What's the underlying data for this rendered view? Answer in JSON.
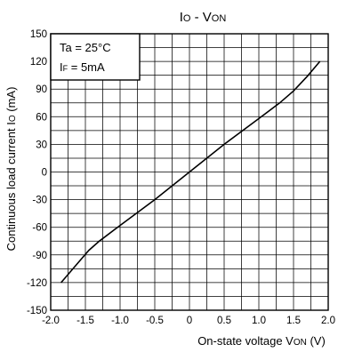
{
  "chart_data": {
    "type": "line",
    "title": {
      "main": "I",
      "main_sub": "O",
      "sep": " - ",
      "v": "V",
      "v_sub": "ON"
    },
    "xlabel": {
      "prefix": "On-state voltage V",
      "sub": "ON",
      "suffix": " (V)"
    },
    "ylabel": {
      "prefix": "Continuous load current I",
      "sub": "O",
      "suffix": " (mA)"
    },
    "xlim": [
      -2.0,
      2.0
    ],
    "ylim": [
      -150,
      150
    ],
    "x_ticks": [
      -2.0,
      -1.5,
      -1.0,
      -0.5,
      0,
      0.5,
      1.0,
      1.5,
      2.0
    ],
    "x_tick_labels": [
      "-2.0",
      "-1.5",
      "-1.0",
      "-0.5",
      "0",
      "0.5",
      "1.0",
      "1.5",
      "2.0"
    ],
    "y_ticks": [
      150,
      120,
      90,
      60,
      30,
      0,
      -30,
      -60,
      -90,
      -120,
      -150
    ],
    "y_tick_labels": [
      "150",
      "120",
      "90",
      "60",
      "30",
      "0",
      "-30",
      "-60",
      "-90",
      "-120",
      "-150"
    ],
    "x_minor_step": 0.25,
    "y_minor_step": 15,
    "grid": true,
    "conditions": [
      {
        "text": "Ta = 25°C"
      },
      {
        "pre": "I",
        "sub": "F",
        "post": " = 5mA"
      }
    ],
    "legend_position": "top-left",
    "series": [
      {
        "points": [
          [
            -1.85,
            -120
          ],
          [
            -1.6,
            -98
          ],
          [
            -1.45,
            -85
          ],
          [
            -1.3,
            -75
          ],
          [
            -1.0,
            -58
          ],
          [
            -0.5,
            -30
          ],
          [
            0,
            0
          ],
          [
            0.5,
            30
          ],
          [
            1.0,
            58
          ],
          [
            1.3,
            75
          ],
          [
            1.5,
            88
          ],
          [
            1.7,
            104
          ],
          [
            1.88,
            120
          ]
        ]
      }
    ]
  }
}
